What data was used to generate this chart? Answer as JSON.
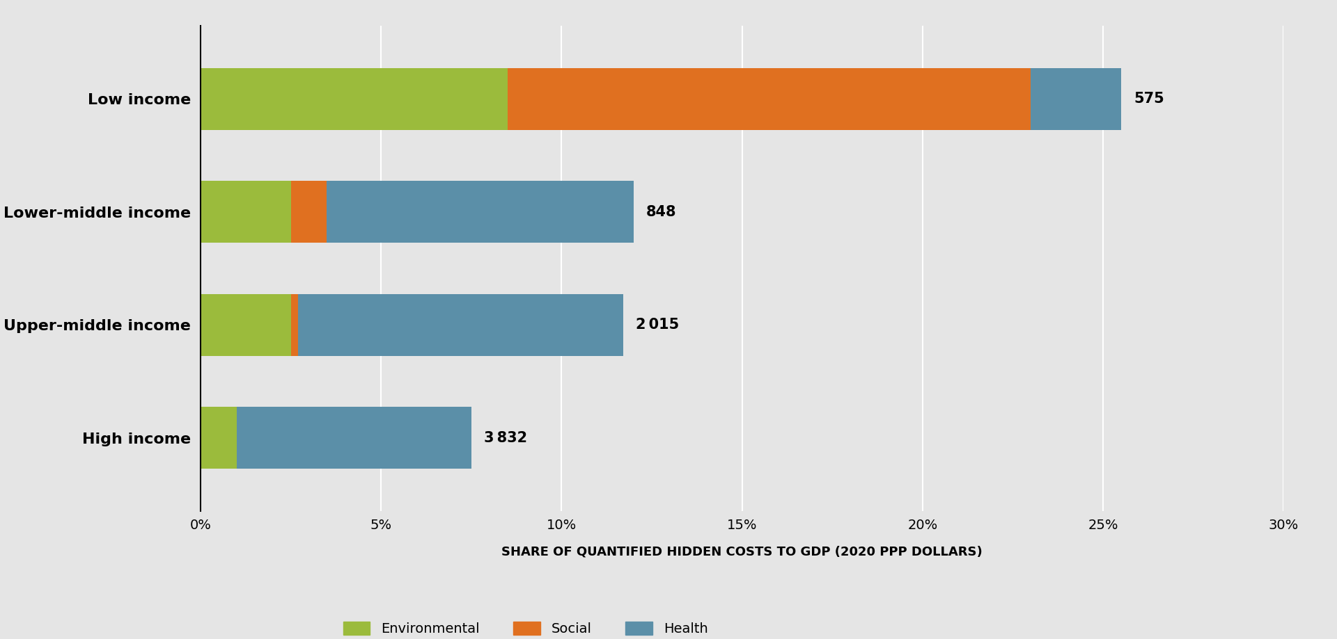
{
  "categories": [
    "Low income",
    "Lower-middle income",
    "Upper-middle income",
    "High income"
  ],
  "environmental": [
    8.5,
    2.5,
    2.5,
    1.0
  ],
  "social": [
    14.5,
    1.0,
    0.2,
    0.0
  ],
  "health": [
    2.5,
    8.5,
    9.0,
    6.5
  ],
  "labels": [
    "575",
    "848",
    "2 015",
    "3 832"
  ],
  "colors": {
    "environmental": "#9BBB3C",
    "social": "#E07020",
    "health": "#5B8FA8"
  },
  "xlabel": "SHARE OF QUANTIFIED HIDDEN COSTS TO GDP (2020 PPP DOLLARS)",
  "xlim": [
    0,
    30
  ],
  "xticks": [
    0,
    5,
    10,
    15,
    20,
    25,
    30
  ],
  "xticklabels": [
    "0%",
    "5%",
    "10%",
    "15%",
    "20%",
    "25%",
    "30%"
  ],
  "background_color": "#E5E5E5",
  "grid_color": "#FFFFFF",
  "bar_height": 0.55,
  "legend_labels": [
    "Environmental",
    "Social",
    "Health"
  ]
}
